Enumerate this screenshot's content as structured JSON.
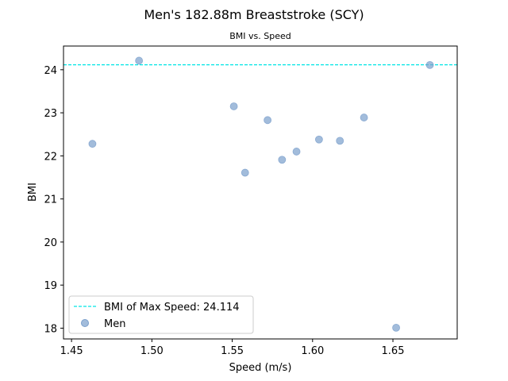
{
  "chart_data": {
    "type": "scatter",
    "title": "Men's 182.88m Breaststroke (SCY)",
    "subtitle": "BMI vs. Speed",
    "xlabel": "Speed (m/s)",
    "ylabel": "BMI",
    "xlim": [
      1.445,
      1.69
    ],
    "ylim": [
      17.75,
      24.55
    ],
    "xticks": [
      1.45,
      1.5,
      1.55,
      1.6,
      1.65
    ],
    "xtick_labels": [
      "1.45",
      "1.50",
      "1.55",
      "1.60",
      "1.65"
    ],
    "yticks": [
      18,
      19,
      20,
      21,
      22,
      23,
      24
    ],
    "ytick_labels": [
      "18",
      "19",
      "20",
      "21",
      "22",
      "23",
      "24"
    ],
    "grid": false,
    "legend_position": "bottom-left",
    "reference_line": {
      "label": "BMI of Max Speed: 24.114",
      "y": 24.114,
      "color": "#00e5e5",
      "style": "dashed"
    },
    "series": [
      {
        "name": "Men",
        "color": "#7a9fcc",
        "points": [
          {
            "x": 1.463,
            "y": 22.28
          },
          {
            "x": 1.492,
            "y": 24.21
          },
          {
            "x": 1.551,
            "y": 23.15
          },
          {
            "x": 1.558,
            "y": 21.61
          },
          {
            "x": 1.572,
            "y": 22.83
          },
          {
            "x": 1.581,
            "y": 21.91
          },
          {
            "x": 1.59,
            "y": 22.1
          },
          {
            "x": 1.604,
            "y": 22.38
          },
          {
            "x": 1.617,
            "y": 22.35
          },
          {
            "x": 1.632,
            "y": 22.89
          },
          {
            "x": 1.652,
            "y": 18.01
          },
          {
            "x": 1.673,
            "y": 24.11
          }
        ]
      }
    ]
  }
}
